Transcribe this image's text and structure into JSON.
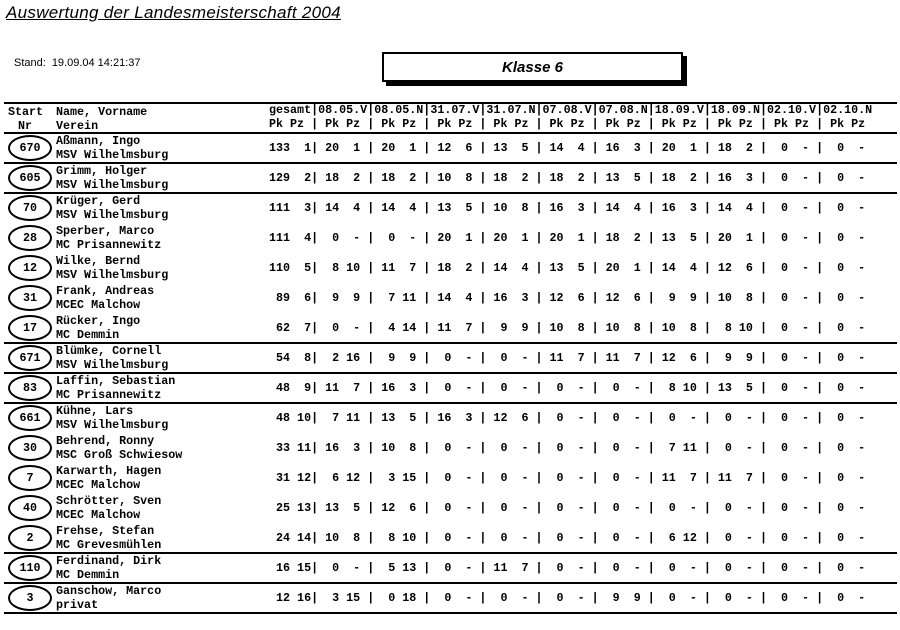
{
  "page": {
    "title": "Auswertung der Landesmeisterschaft 2004",
    "stand_label": "Stand:",
    "stand_value": "19.09.04 14:21:37",
    "klasse": "Klasse 6"
  },
  "colors": {
    "ink": "#000000",
    "paper": "#ffffff"
  },
  "table": {
    "header": {
      "col_start_line1": "Start",
      "col_start_line2": "Nr",
      "col_name_line1": "Name, Vorname",
      "col_name_line2": "Verein",
      "total_label": "gesamt",
      "events": [
        "08.05.V",
        "08.05.N",
        "31.07.V",
        "31.07.N",
        "07.08.V",
        "07.08.N",
        "18.09.V",
        "18.09.N",
        "02.10.V",
        "02.10.N"
      ],
      "sub_label": "Pk Pz"
    },
    "rows": [
      {
        "nr": "670",
        "name": "Aßmann, Ingo",
        "club": "MSV Wilhelmsburg",
        "total": [
          133,
          1
        ],
        "events": [
          [
            20,
            1
          ],
          [
            20,
            1
          ],
          [
            12,
            6
          ],
          [
            13,
            5
          ],
          [
            14,
            4
          ],
          [
            16,
            3
          ],
          [
            20,
            1
          ],
          [
            18,
            2
          ],
          [
            0,
            "-"
          ],
          [
            0,
            "-"
          ]
        ]
      },
      {
        "nr": "605",
        "name": "Grimm, Holger",
        "club": "MSV Wilhelmsburg",
        "total": [
          129,
          2
        ],
        "events": [
          [
            18,
            2
          ],
          [
            18,
            2
          ],
          [
            10,
            8
          ],
          [
            18,
            2
          ],
          [
            18,
            2
          ],
          [
            13,
            5
          ],
          [
            18,
            2
          ],
          [
            16,
            3
          ],
          [
            0,
            "-"
          ],
          [
            0,
            "-"
          ]
        ]
      },
      {
        "nr": "70",
        "name": "Krüger, Gerd",
        "club": "MSV Wilhelmsburg",
        "total": [
          111,
          3
        ],
        "events": [
          [
            14,
            4
          ],
          [
            14,
            4
          ],
          [
            13,
            5
          ],
          [
            10,
            8
          ],
          [
            16,
            3
          ],
          [
            14,
            4
          ],
          [
            16,
            3
          ],
          [
            14,
            4
          ],
          [
            0,
            "-"
          ],
          [
            0,
            "-"
          ]
        ]
      },
      {
        "nr": "28",
        "name": "Sperber, Marco",
        "club": "MC Prisannewitz",
        "total": [
          111,
          4
        ],
        "events": [
          [
            0,
            "-"
          ],
          [
            0,
            "-"
          ],
          [
            20,
            1
          ],
          [
            20,
            1
          ],
          [
            20,
            1
          ],
          [
            18,
            2
          ],
          [
            13,
            5
          ],
          [
            20,
            1
          ],
          [
            0,
            "-"
          ],
          [
            0,
            "-"
          ]
        ]
      },
      {
        "nr": "12",
        "name": "Wilke, Bernd",
        "club": "MSV Wilhelmsburg",
        "total": [
          110,
          5
        ],
        "events": [
          [
            8,
            10
          ],
          [
            11,
            7
          ],
          [
            18,
            2
          ],
          [
            14,
            4
          ],
          [
            13,
            5
          ],
          [
            20,
            1
          ],
          [
            14,
            4
          ],
          [
            12,
            6
          ],
          [
            0,
            "-"
          ],
          [
            0,
            "-"
          ]
        ]
      },
      {
        "nr": "31",
        "name": "Frank, Andreas",
        "club": "MCEC Malchow",
        "total": [
          89,
          6
        ],
        "events": [
          [
            9,
            9
          ],
          [
            7,
            11
          ],
          [
            14,
            4
          ],
          [
            16,
            3
          ],
          [
            12,
            6
          ],
          [
            12,
            6
          ],
          [
            9,
            9
          ],
          [
            10,
            8
          ],
          [
            0,
            "-"
          ],
          [
            0,
            "-"
          ]
        ]
      },
      {
        "nr": "17",
        "name": "Rücker, Ingo",
        "club": "MC Demmin",
        "total": [
          62,
          7
        ],
        "events": [
          [
            0,
            "-"
          ],
          [
            4,
            14
          ],
          [
            11,
            7
          ],
          [
            9,
            9
          ],
          [
            10,
            8
          ],
          [
            10,
            8
          ],
          [
            10,
            8
          ],
          [
            8,
            10
          ],
          [
            0,
            "-"
          ],
          [
            0,
            "-"
          ]
        ]
      },
      {
        "nr": "671",
        "name": "Blümke, Cornell",
        "club": "MSV Wilhelmsburg",
        "total": [
          54,
          8
        ],
        "events": [
          [
            2,
            16
          ],
          [
            9,
            9
          ],
          [
            0,
            "-"
          ],
          [
            0,
            "-"
          ],
          [
            11,
            7
          ],
          [
            11,
            7
          ],
          [
            12,
            6
          ],
          [
            9,
            9
          ],
          [
            0,
            "-"
          ],
          [
            0,
            "-"
          ]
        ]
      },
      {
        "nr": "83",
        "name": "Laffin, Sebastian",
        "club": "MC Prisannewitz",
        "total": [
          48,
          9
        ],
        "events": [
          [
            11,
            7
          ],
          [
            16,
            3
          ],
          [
            0,
            "-"
          ],
          [
            0,
            "-"
          ],
          [
            0,
            "-"
          ],
          [
            0,
            "-"
          ],
          [
            8,
            10
          ],
          [
            13,
            5
          ],
          [
            0,
            "-"
          ],
          [
            0,
            "-"
          ]
        ]
      },
      {
        "nr": "661",
        "name": "Kühne, Lars",
        "club": "MSV Wilhelmsburg",
        "total": [
          48,
          10
        ],
        "events": [
          [
            7,
            11
          ],
          [
            13,
            5
          ],
          [
            16,
            3
          ],
          [
            12,
            6
          ],
          [
            0,
            "-"
          ],
          [
            0,
            "-"
          ],
          [
            0,
            "-"
          ],
          [
            0,
            "-"
          ],
          [
            0,
            "-"
          ],
          [
            0,
            "-"
          ]
        ]
      },
      {
        "nr": "30",
        "name": "Behrend, Ronny",
        "club": "MSC Groß Schwiesow",
        "total": [
          33,
          11
        ],
        "events": [
          [
            16,
            3
          ],
          [
            10,
            8
          ],
          [
            0,
            "-"
          ],
          [
            0,
            "-"
          ],
          [
            0,
            "-"
          ],
          [
            0,
            "-"
          ],
          [
            7,
            11
          ],
          [
            0,
            "-"
          ],
          [
            0,
            "-"
          ],
          [
            0,
            "-"
          ]
        ]
      },
      {
        "nr": "7",
        "name": "Karwarth, Hagen",
        "club": "MCEC Malchow",
        "total": [
          31,
          12
        ],
        "events": [
          [
            6,
            12
          ],
          [
            3,
            15
          ],
          [
            0,
            "-"
          ],
          [
            0,
            "-"
          ],
          [
            0,
            "-"
          ],
          [
            0,
            "-"
          ],
          [
            11,
            7
          ],
          [
            11,
            7
          ],
          [
            0,
            "-"
          ],
          [
            0,
            "-"
          ]
        ]
      },
      {
        "nr": "40",
        "name": "Schrötter, Sven",
        "club": "MCEC Malchow",
        "total": [
          25,
          13
        ],
        "events": [
          [
            13,
            5
          ],
          [
            12,
            6
          ],
          [
            0,
            "-"
          ],
          [
            0,
            "-"
          ],
          [
            0,
            "-"
          ],
          [
            0,
            "-"
          ],
          [
            0,
            "-"
          ],
          [
            0,
            "-"
          ],
          [
            0,
            "-"
          ],
          [
            0,
            "-"
          ]
        ]
      },
      {
        "nr": "2",
        "name": "Frehse, Stefan",
        "club": "MC Grevesmühlen",
        "total": [
          24,
          14
        ],
        "events": [
          [
            10,
            8
          ],
          [
            8,
            10
          ],
          [
            0,
            "-"
          ],
          [
            0,
            "-"
          ],
          [
            0,
            "-"
          ],
          [
            0,
            "-"
          ],
          [
            6,
            12
          ],
          [
            0,
            "-"
          ],
          [
            0,
            "-"
          ],
          [
            0,
            "-"
          ]
        ]
      },
      {
        "nr": "110",
        "name": "Ferdinand, Dirk",
        "club": "MC Demmin",
        "total": [
          16,
          15
        ],
        "events": [
          [
            0,
            "-"
          ],
          [
            5,
            13
          ],
          [
            0,
            "-"
          ],
          [
            11,
            7
          ],
          [
            0,
            "-"
          ],
          [
            0,
            "-"
          ],
          [
            0,
            "-"
          ],
          [
            0,
            "-"
          ],
          [
            0,
            "-"
          ],
          [
            0,
            "-"
          ]
        ]
      },
      {
        "nr": "3",
        "name": "Ganschow, Marco",
        "club": "privat",
        "total": [
          12,
          16
        ],
        "events": [
          [
            3,
            15
          ],
          [
            0,
            18
          ],
          [
            0,
            "-"
          ],
          [
            0,
            "-"
          ],
          [
            0,
            "-"
          ],
          [
            9,
            9
          ],
          [
            0,
            "-"
          ],
          [
            0,
            "-"
          ],
          [
            0,
            "-"
          ],
          [
            0,
            "-"
          ]
        ]
      }
    ],
    "rules_after_rows": [
      0,
      1,
      6,
      7,
      8,
      13,
      14,
      15
    ]
  }
}
